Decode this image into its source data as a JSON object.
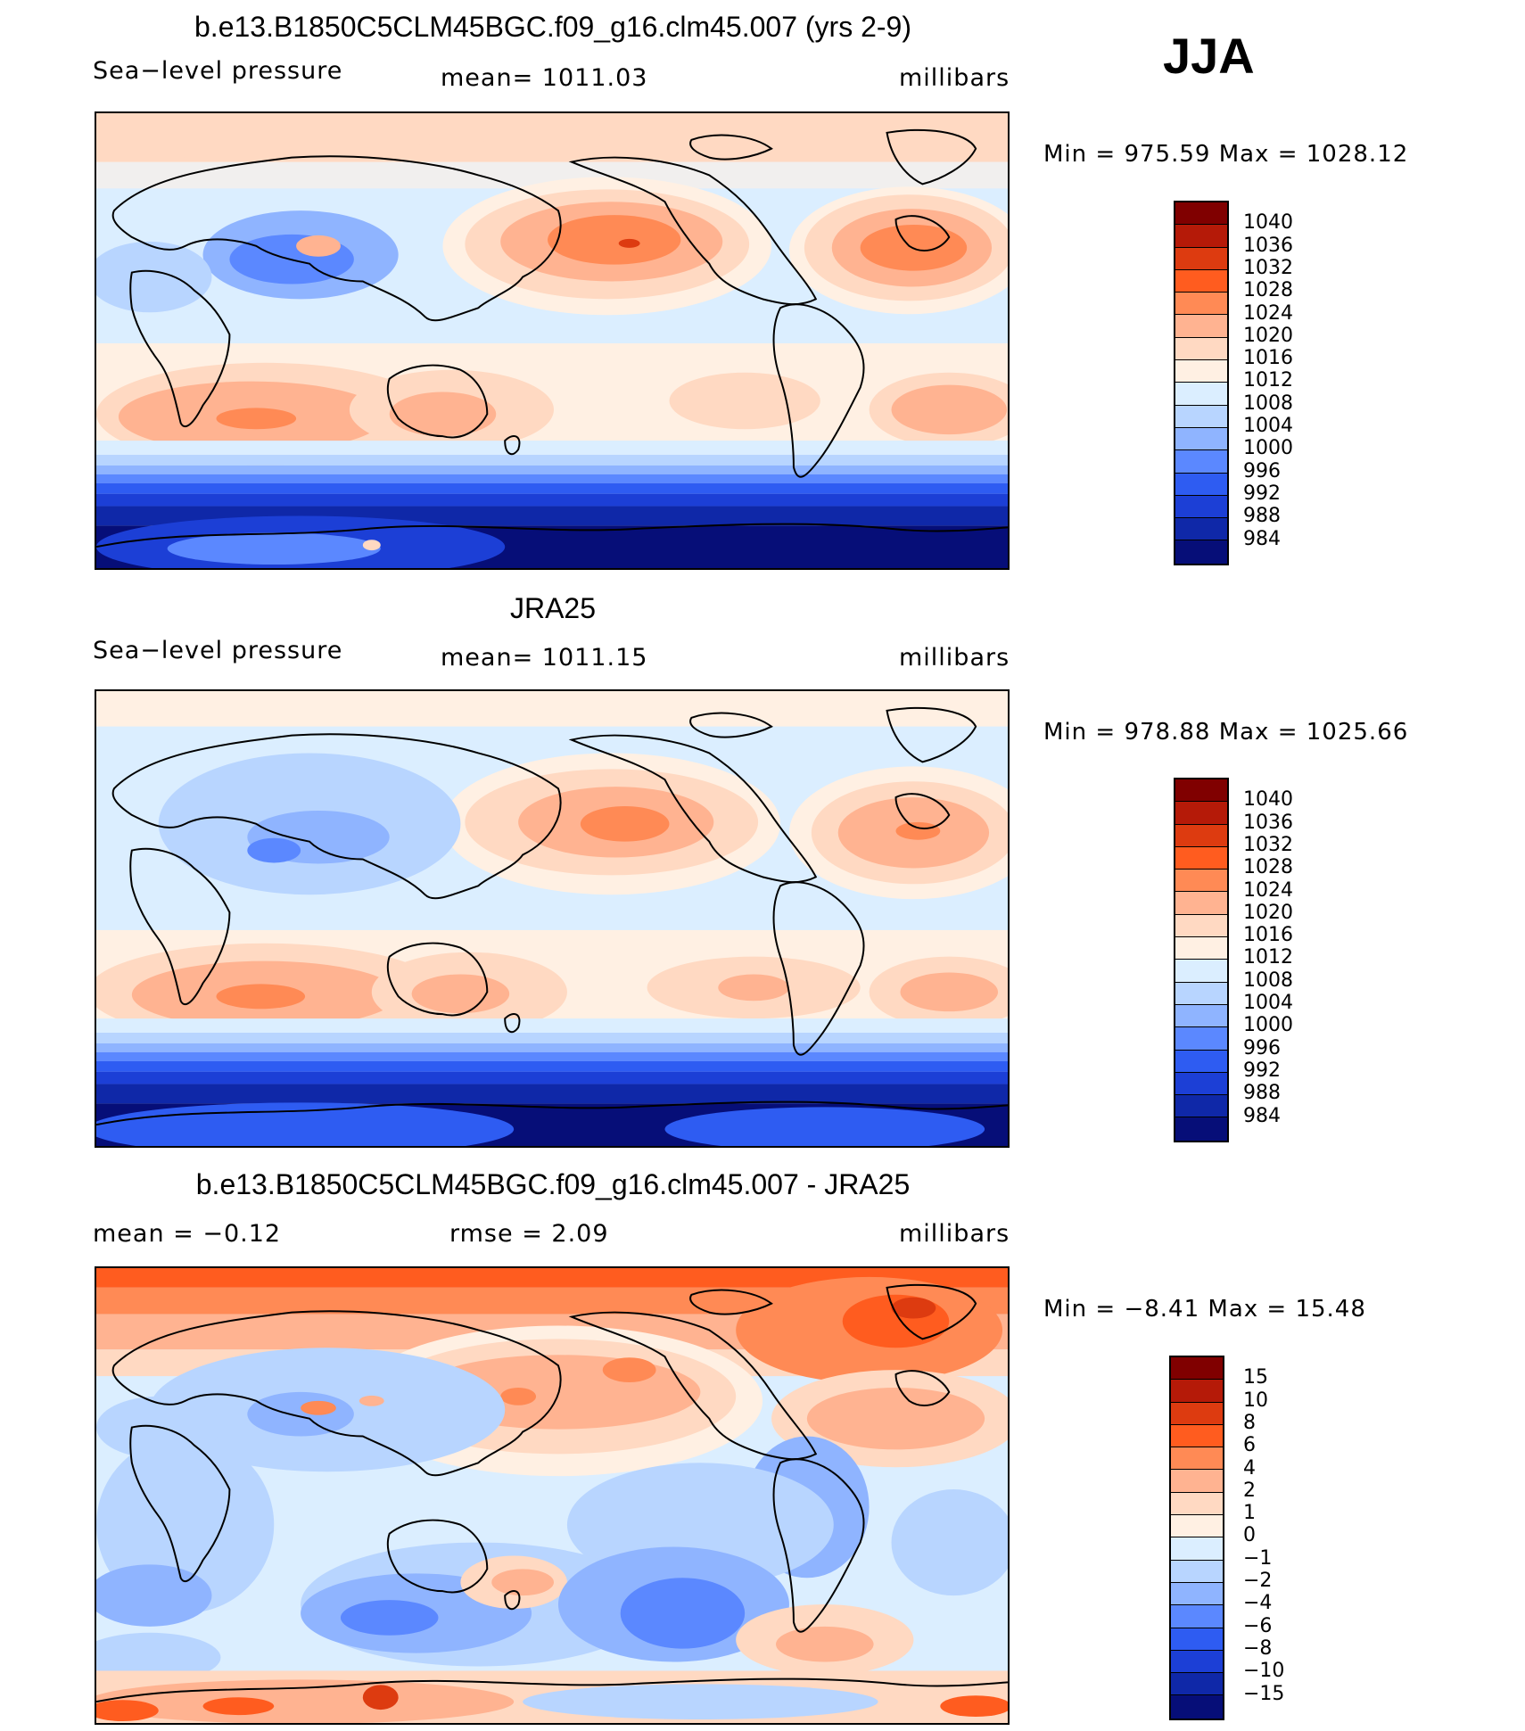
{
  "season": "JJA",
  "colors": {
    "slp": [
      "#800000",
      "#b51a08",
      "#dd3b10",
      "#ff5c1f",
      "#ff8a55",
      "#ffb391",
      "#ffd9c2",
      "#fff0e3",
      "#dbeeff",
      "#b8d5ff",
      "#8fb4ff",
      "#5b88ff",
      "#2e5cf2",
      "#1c3fd6",
      "#0f28a8",
      "#060e78"
    ],
    "diff": [
      "#800000",
      "#b51a08",
      "#dd3b10",
      "#ff5c1f",
      "#ff8a55",
      "#ffb391",
      "#ffd9c2",
      "#fff0e3",
      "#dbeeff",
      "#b8d5ff",
      "#8fb4ff",
      "#5b88ff",
      "#2e5cf2",
      "#1c3fd6",
      "#0f28a8",
      "#060e78"
    ]
  },
  "panels": [
    {
      "title": "b.e13.B1850C5CLM45BGC.f09_g16.clm45.007 (yrs 2-9)",
      "left": "Sea−level pressure",
      "center": "mean=  1011.03",
      "right": "millibars",
      "minmax": "Min  =  975.59  Max  =  1028.12",
      "colorbar_labels": [
        "1040",
        "1036",
        "1032",
        "1028",
        "1024",
        "1020",
        "1016",
        "1012",
        "1008",
        "1004",
        "1000",
        "996",
        "992",
        "988",
        "984"
      ]
    },
    {
      "title": "JRA25",
      "left": "Sea−level pressure",
      "center": "mean=  1011.15",
      "right": "millibars",
      "minmax": "Min  =  978.88  Max  =  1025.66",
      "colorbar_labels": [
        "1040",
        "1036",
        "1032",
        "1028",
        "1024",
        "1020",
        "1016",
        "1012",
        "1008",
        "1004",
        "1000",
        "996",
        "992",
        "988",
        "984"
      ]
    },
    {
      "title": "b.e13.B1850C5CLM45BGC.f09_g16.clm45.007 - JRA25",
      "left": "mean  =    −0.12",
      "center": "rmse  =     2.09",
      "right": "millibars",
      "minmax": "Min  =    −8.41  Max  =    15.48",
      "colorbar_labels": [
        "15",
        "10",
        "8",
        "6",
        "4",
        "2",
        "1",
        "0",
        "−1",
        "−2",
        "−4",
        "−6",
        "−8",
        "−10",
        "−15"
      ]
    }
  ]
}
